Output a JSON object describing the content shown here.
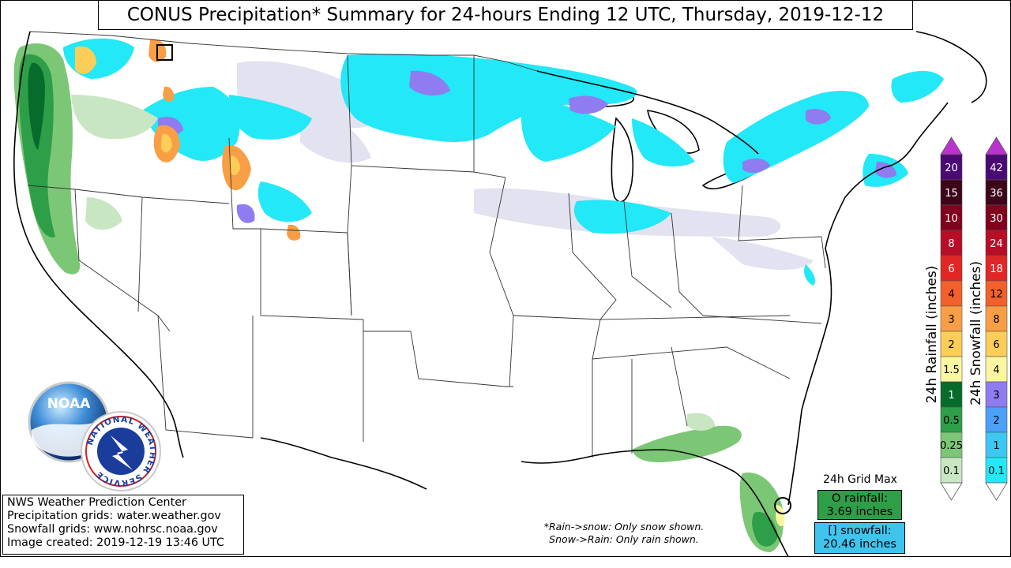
{
  "title": "CONUS Precipitation* Summary for 24-hours Ending 12 UTC, Thursday, 2019-12-12",
  "rainfall_colorbar": {
    "label": "24h Rainfall (inches)",
    "levels": [
      "20",
      "15",
      "10",
      "8",
      "6",
      "4",
      "3",
      "2",
      "1.5",
      "1",
      "0.5",
      "0.25",
      "0.1"
    ],
    "colors": [
      "#4b0a73",
      "#3d0519",
      "#80001d",
      "#b80d26",
      "#e12626",
      "#f2612b",
      "#f89f45",
      "#fdce57",
      "#fbf7a0",
      "#066b2b",
      "#2e9e49",
      "#7cc776",
      "#c8e6c2"
    ],
    "arrow_color": "#bb33cc"
  },
  "snowfall_colorbar": {
    "label": "24h Snowfall (inches)",
    "levels": [
      "42",
      "36",
      "30",
      "24",
      "18",
      "12",
      "8",
      "6",
      "4",
      "3",
      "2",
      "1",
      "0.1"
    ],
    "colors": [
      "#4b0a73",
      "#3d0519",
      "#80001d",
      "#b80d26",
      "#e12626",
      "#f2612b",
      "#f89f45",
      "#fdce57",
      "#fbf7a0",
      "#8e7cf0",
      "#4aa1f7",
      "#3bc8f3",
      "#22e8f7"
    ],
    "arrow_color": "#bb33cc"
  },
  "logos": {
    "noaa_text": "NOAA",
    "nws_ring_text": "NATIONAL WEATHER SERVICE"
  },
  "credits": [
    "NWS Weather Prediction Center",
    "Precipitation grids: water.weather.gov",
    "Snowfall grids: www.nohrsc.noaa.gov",
    "Image created: 2019-12-19 13:46 UTC"
  ],
  "footnote": [
    "*Rain->snow: Only snow shown.",
    "Snow->Rain: Only rain shown."
  ],
  "grid_max": {
    "title": "24h Grid Max",
    "rain_marker": "O",
    "rain_label": "rainfall:",
    "rain_value": "3.69 inches",
    "snow_marker": "[]",
    "snow_label": "snowfall:",
    "snow_value": "20.46 inches",
    "rain_color": "#2e9e49",
    "snow_color": "#3fc4ee"
  }
}
